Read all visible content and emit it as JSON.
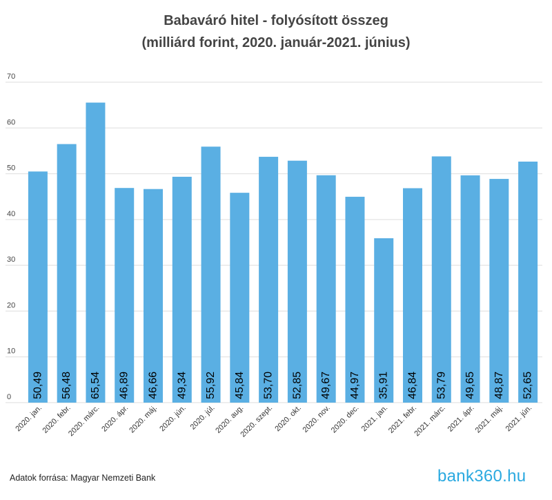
{
  "title_line1": "Babaváró hitel - folyósított összeg",
  "title_line2": "(milliárd forint, 2020. január-2021. június)",
  "source": "Adatok forrása: Magyar Nemzeti Bank",
  "logo": "bank360.hu",
  "colors": {
    "bar": "#5aafe3",
    "grid": "#dddddd",
    "label": "#000000"
  },
  "chart_data": {
    "type": "bar",
    "categories": [
      "2020. jan.",
      "2020. febr.",
      "2020. márc.",
      "2020. ápr.",
      "2020. máj.",
      "2020. jún.",
      "2020. júl.",
      "2020. aug.",
      "2020. szept.",
      "2020. okt.",
      "2020. nov.",
      "2020. dec.",
      "2021. jan.",
      "2021. febr.",
      "2021. márc.",
      "2021. ápr.",
      "2021. máj.",
      "2021. jún."
    ],
    "values": [
      50.49,
      56.48,
      65.54,
      46.89,
      46.66,
      49.34,
      55.92,
      45.84,
      53.7,
      52.85,
      49.67,
      44.97,
      35.91,
      46.84,
      53.79,
      49.65,
      48.87,
      52.65
    ],
    "value_labels": [
      "50,49",
      "56,48",
      "65,54",
      "46,89",
      "46,66",
      "49,34",
      "55,92",
      "45,84",
      "53,70",
      "52,85",
      "49,67",
      "44,97",
      "35,91",
      "46,84",
      "53,79",
      "49,65",
      "48,87",
      "52,65"
    ],
    "yticks": [
      0,
      10,
      20,
      30,
      40,
      50,
      60,
      70
    ],
    "ylim": [
      0,
      70
    ],
    "grid": true,
    "legend": "none"
  }
}
